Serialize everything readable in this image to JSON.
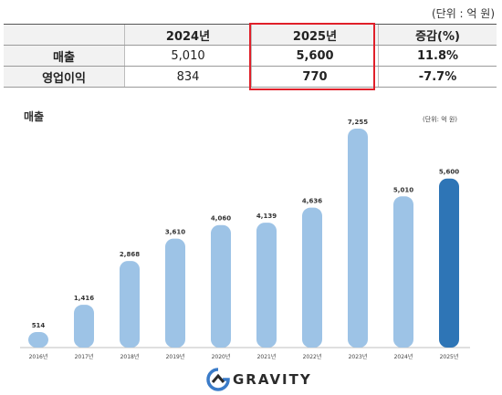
{
  "summary": {
    "unit_note": "(단위 : 억 원)",
    "headers": [
      "2024년",
      "2025년",
      "증감(%)"
    ],
    "rows": [
      {
        "label": "매출",
        "v2024": "5,010",
        "v2025": "5,600",
        "change": "11.8%"
      },
      {
        "label": "영업이익",
        "v2024": "834",
        "v2025": "770",
        "change": "-7.7%"
      }
    ],
    "highlight_color": "#e0202a"
  },
  "chart_data": {
    "type": "bar",
    "title": "매출",
    "unit_note": "(단위: 억 원)",
    "categories": [
      "2016년",
      "2017년",
      "2018년",
      "2019년",
      "2020년",
      "2021년",
      "2022년",
      "2023년",
      "2024년",
      "2025년"
    ],
    "values": [
      514,
      1416,
      2868,
      3610,
      4060,
      4139,
      4636,
      7255,
      5010,
      5600
    ],
    "value_labels": [
      "514",
      "1,416",
      "2,868",
      "3,610",
      "4,060",
      "4,139",
      "4,636",
      "7,255",
      "5,010",
      "5,600"
    ],
    "highlight_category": "2025년",
    "ylim": [
      0,
      7255
    ],
    "grid": false,
    "colors": {
      "bar": "#9dc3e6",
      "highlight": "#2e75b6"
    }
  },
  "logo": {
    "text": "GRAVITY"
  }
}
